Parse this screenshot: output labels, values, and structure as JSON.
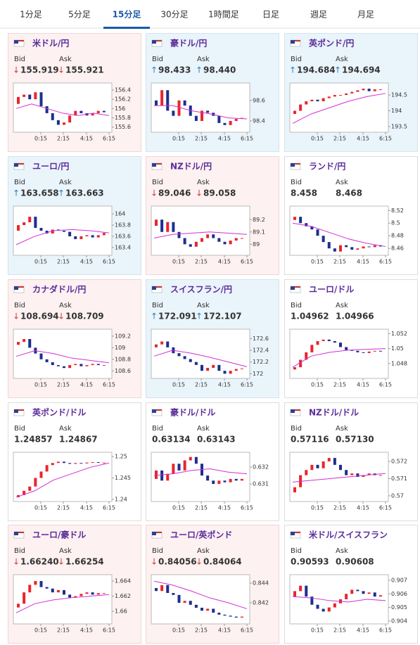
{
  "tabs": {
    "items": [
      "1分足",
      "5分足",
      "15分足",
      "30分足",
      "1時間足",
      "日足",
      "週足",
      "月足"
    ],
    "active": 2
  },
  "bid_label": "Bid",
  "ask_label": "Ask",
  "xticks": [
    "0:15",
    "2:15",
    "4:15",
    "6:15"
  ],
  "cards": [
    {
      "name": "米ドル/円",
      "arrow": "↓",
      "bid": "155.919",
      "ask": "155.921",
      "chart": {
        "ylim": [
          155.49,
          156.55
        ],
        "yticks": [
          156.4,
          156.2,
          156,
          155.8,
          155.6
        ],
        "closes": [
          156.1,
          156.25,
          156.3,
          156.2,
          156.35,
          156.05,
          155.9,
          155.75,
          155.65,
          155.7,
          155.85,
          155.95,
          155.9,
          155.85,
          155.9,
          155.95,
          155.92
        ],
        "ma": [
          156.0,
          156.1,
          156.0,
          155.9,
          155.85,
          155.9,
          155.85
        ]
      }
    },
    {
      "name": "豪ドル/円",
      "arrow": "↑",
      "bid": "98.433",
      "ask": "98.440",
      "chart": {
        "ylim": [
          98.29,
          98.77
        ],
        "yticks": [
          98.6,
          98.4
        ],
        "closes": [
          98.6,
          98.55,
          98.7,
          98.5,
          98.45,
          98.6,
          98.55,
          98.45,
          98.4,
          98.5,
          98.48,
          98.45,
          98.38,
          98.36,
          98.4,
          98.42,
          98.43
        ],
        "ma": [
          98.55,
          98.55,
          98.5,
          98.47,
          98.43,
          98.42
        ]
      }
    },
    {
      "name": "英ポンド/円",
      "arrow": "↑",
      "bid": "194.684",
      "ask": "194.694",
      "chart": {
        "ylim": [
          193.32,
          194.88
        ],
        "yticks": [
          194.5,
          194,
          193.5
        ],
        "closes": [
          193.9,
          194.0,
          194.2,
          194.3,
          194.35,
          194.3,
          194.4,
          194.45,
          194.5,
          194.5,
          194.55,
          194.6,
          194.65,
          194.7,
          194.62,
          194.68,
          194.68
        ],
        "ma": [
          193.6,
          193.9,
          194.1,
          194.3,
          194.45,
          194.55
        ]
      }
    },
    {
      "name": "ユーロ/円",
      "arrow": "↑",
      "bid": "163.658",
      "ask": "163.663",
      "chart": {
        "ylim": [
          163.26,
          164.14
        ],
        "yticks": [
          164,
          163.8,
          163.6,
          163.4
        ],
        "closes": [
          163.7,
          163.8,
          163.85,
          163.95,
          163.75,
          163.7,
          163.65,
          163.72,
          163.7,
          163.68,
          163.6,
          163.55,
          163.6,
          163.62,
          163.58,
          163.62,
          163.66
        ],
        "ma": [
          163.45,
          163.6,
          163.7,
          163.72,
          163.7,
          163.66
        ]
      }
    },
    {
      "name": "NZドル/円",
      "arrow": "↓",
      "bid": "89.046",
      "ask": "89.058",
      "chart": {
        "ylim": [
          88.91,
          89.31
        ],
        "yticks": [
          89.2,
          89.1,
          89
        ],
        "closes": [
          89.15,
          89.2,
          89.1,
          89.18,
          89.1,
          89.05,
          89.0,
          88.98,
          89.02,
          89.05,
          89.08,
          89.05,
          89.02,
          89.0,
          89.03,
          89.05,
          89.05
        ],
        "ma": [
          89.05,
          89.08,
          89.09,
          89.1,
          89.09,
          89.08
        ]
      }
    },
    {
      "name": "ランド/円",
      "bid": "8.458",
      "ask": "8.468",
      "chart": {
        "ylim": [
          8.449,
          8.527
        ],
        "yticks": [
          8.52,
          8.5,
          8.48,
          8.46
        ],
        "closes": [
          8.505,
          8.51,
          8.5,
          8.495,
          8.49,
          8.48,
          8.47,
          8.46,
          8.455,
          8.465,
          8.462,
          8.458,
          8.46,
          8.463,
          8.462,
          8.465,
          8.463
        ],
        "ma": [
          8.5,
          8.495,
          8.485,
          8.475,
          8.468,
          8.463
        ]
      }
    },
    {
      "name": "カナダドル/円",
      "arrow": "↓",
      "bid": "108.694",
      "ask": "108.709",
      "chart": {
        "ylim": [
          108.47,
          109.32
        ],
        "yticks": [
          109.2,
          109,
          108.8,
          108.6
        ],
        "closes": [
          109.05,
          109.1,
          109.15,
          109.0,
          108.9,
          108.8,
          108.75,
          108.7,
          108.68,
          108.65,
          108.7,
          108.72,
          108.68,
          108.7,
          108.72,
          108.7,
          108.7
        ],
        "ma": [
          108.85,
          108.95,
          108.9,
          108.82,
          108.78,
          108.74
        ]
      }
    },
    {
      "name": "スイスフラン/円",
      "arrow": "↑",
      "bid": "172.091",
      "ask": "172.107",
      "chart": {
        "ylim": [
          171.92,
          172.76
        ],
        "yticks": [
          172.6,
          172.4,
          172.2,
          172
        ],
        "closes": [
          172.45,
          172.5,
          172.55,
          172.45,
          172.35,
          172.3,
          172.25,
          172.2,
          172.15,
          172.05,
          172.1,
          172.15,
          172.05,
          172.0,
          172.05,
          172.08,
          172.09
        ],
        "ma": [
          172.3,
          172.4,
          172.35,
          172.28,
          172.2,
          172.12
        ]
      }
    },
    {
      "name": "ユーロ/ドル",
      "bid": "1.04962",
      "ask": "1.04966",
      "chart": {
        "ylim": [
          1.046,
          1.0526
        ],
        "yticks": [
          1.052,
          1.05,
          1.048
        ],
        "closes": [
          1.0472,
          1.0475,
          1.0485,
          1.0495,
          1.0505,
          1.051,
          1.0512,
          1.051,
          1.0508,
          1.0502,
          1.0498,
          1.0497,
          1.0495,
          1.0494,
          1.0496,
          1.0497,
          1.0496
        ],
        "ma": [
          1.0475,
          1.049,
          1.0495,
          1.0498,
          1.0499,
          1.05
        ]
      }
    },
    {
      "name": "英ポンド/ドル",
      "bid": "1.24857",
      "ask": "1.24867",
      "chart": {
        "ylim": [
          1.2395,
          1.251
        ],
        "yticks": [
          1.25,
          1.245,
          1.24
        ],
        "closes": [
          1.2405,
          1.241,
          1.242,
          1.243,
          1.245,
          1.2465,
          1.248,
          1.2485,
          1.2488,
          1.2485,
          1.2483,
          1.2485,
          1.2484,
          1.2486,
          1.2487,
          1.2486,
          1.2486
        ],
        "ma": [
          1.2405,
          1.242,
          1.2445,
          1.246,
          1.2475,
          1.2485
        ]
      }
    },
    {
      "name": "豪ドル/ドル",
      "bid": "0.63134",
      "ask": "0.63143",
      "chart": {
        "ylim": [
          0.62996,
          0.63288
        ],
        "yticks": [
          0.632,
          0.631
        ],
        "closes": [
          0.6313,
          0.6318,
          0.6312,
          0.6316,
          0.6322,
          0.6318,
          0.6324,
          0.6326,
          0.6322,
          0.6315,
          0.6312,
          0.631,
          0.6312,
          0.6311,
          0.6313,
          0.6312,
          0.6313
        ],
        "ma": [
          0.6315,
          0.6316,
          0.6318,
          0.6319,
          0.6317,
          0.6316
        ]
      }
    },
    {
      "name": "NZドル/ドル",
      "bid": "0.57116",
      "ask": "0.57130",
      "chart": {
        "ylim": [
          0.56967,
          0.57253
        ],
        "yticks": [
          0.572,
          0.571,
          0.57
        ],
        "closes": [
          0.5702,
          0.5705,
          0.5712,
          0.5715,
          0.5718,
          0.5716,
          0.572,
          0.5722,
          0.5718,
          0.5715,
          0.5712,
          0.5713,
          0.5711,
          0.5712,
          0.5713,
          0.5712,
          0.5712
        ],
        "ma": [
          0.5708,
          0.5709,
          0.571,
          0.5711,
          0.5712,
          0.5713
        ]
      }
    },
    {
      "name": "ユーロ/豪ドル",
      "arrow": "↓",
      "bid": "1.66240",
      "ask": "1.66254",
      "chart": {
        "ylim": [
          1.65833,
          1.66484
        ],
        "yticks": [
          1.664,
          1.662,
          1.66
        ],
        "closes": [
          1.6605,
          1.661,
          1.6625,
          1.6635,
          1.664,
          1.6632,
          1.663,
          1.6625,
          1.6628,
          1.6622,
          1.6618,
          1.662,
          1.6623,
          1.6625,
          1.6622,
          1.6624,
          1.6624
        ],
        "ma": [
          1.6598,
          1.661,
          1.6615,
          1.6618,
          1.662,
          1.6622
        ]
      }
    },
    {
      "name": "ユーロ/英ポンド",
      "arrow": "↓",
      "bid": "0.84056",
      "ask": "0.84064",
      "chart": {
        "ylim": [
          0.83986,
          0.84486
        ],
        "yticks": [
          0.844,
          0.842
        ],
        "closes": [
          0.8435,
          0.8432,
          0.8438,
          0.843,
          0.8428,
          0.842,
          0.8422,
          0.8418,
          0.8415,
          0.8412,
          0.8414,
          0.841,
          0.8408,
          0.8407,
          0.8406,
          0.8405,
          0.8406
        ],
        "ma": [
          0.8442,
          0.8438,
          0.8432,
          0.8425,
          0.842,
          0.8414
        ]
      }
    },
    {
      "name": "米ドル/スイスフラン",
      "bid": "0.90593",
      "ask": "0.90608",
      "chart": {
        "ylim": [
          0.90379,
          0.90741
        ],
        "yticks": [
          0.907,
          0.906,
          0.905,
          0.904
        ],
        "closes": [
          0.9058,
          0.9062,
          0.9066,
          0.9058,
          0.9052,
          0.9049,
          0.9047,
          0.905,
          0.9053,
          0.9056,
          0.906,
          0.9063,
          0.9062,
          0.906,
          0.9061,
          0.9058,
          0.9059
        ],
        "ma": [
          0.9058,
          0.9057,
          0.9055,
          0.9054,
          0.9056,
          0.9055
        ]
      }
    }
  ]
}
